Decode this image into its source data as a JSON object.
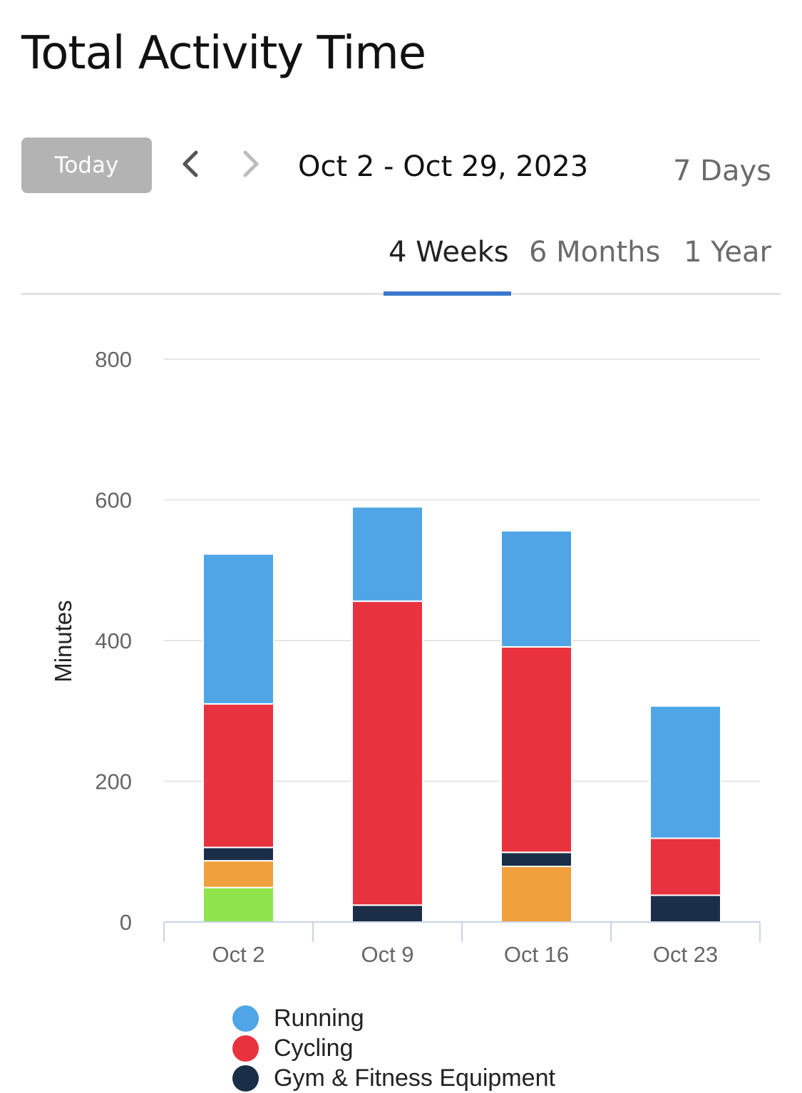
{
  "header": {
    "title": "Total Activity Time"
  },
  "controls": {
    "today_label": "Today",
    "date_range": "Oct 2 - Oct 29, 2023",
    "range_options": [
      "7 Days",
      "4 Weeks",
      "6 Months",
      "1 Year"
    ],
    "selected_range": "4 Weeks",
    "prev_icon": "chevron-left-icon",
    "next_icon": "chevron-right-icon"
  },
  "colors": {
    "running": "#4fa5e6",
    "cycling": "#e8333f",
    "gym": "#1a2f47",
    "orange_series": "#f0a03c",
    "green_series": "#8fe44c",
    "accent": "#3a78cc"
  },
  "chart_data": {
    "type": "bar",
    "stacked": true,
    "categories": [
      "Oct 2",
      "Oct 9",
      "Oct 16",
      "Oct 23"
    ],
    "ylabel": "Minutes",
    "ylim": [
      0,
      800
    ],
    "yticks": [
      0,
      200,
      400,
      600,
      800
    ],
    "grid": true,
    "legend_position": "bottom",
    "series": [
      {
        "name": "",
        "color": "#8fe44c",
        "values": [
          49,
          0,
          0,
          0
        ]
      },
      {
        "name": "",
        "color": "#f0a03c",
        "values": [
          38,
          0,
          79,
          0
        ]
      },
      {
        "name": "Gym & Fitness Equipment",
        "color": "#1a2f47",
        "values": [
          19,
          24,
          20,
          38
        ]
      },
      {
        "name": "Cycling",
        "color": "#e8333f",
        "values": [
          204,
          432,
          292,
          81
        ]
      },
      {
        "name": "Running",
        "color": "#4fa5e6",
        "values": [
          213,
          134,
          165,
          188
        ]
      }
    ]
  },
  "legend": [
    {
      "label": "Running",
      "color": "#4fa5e6"
    },
    {
      "label": "Cycling",
      "color": "#e8333f"
    },
    {
      "label": "Gym & Fitness Equipment",
      "color": "#1a2f47"
    }
  ]
}
